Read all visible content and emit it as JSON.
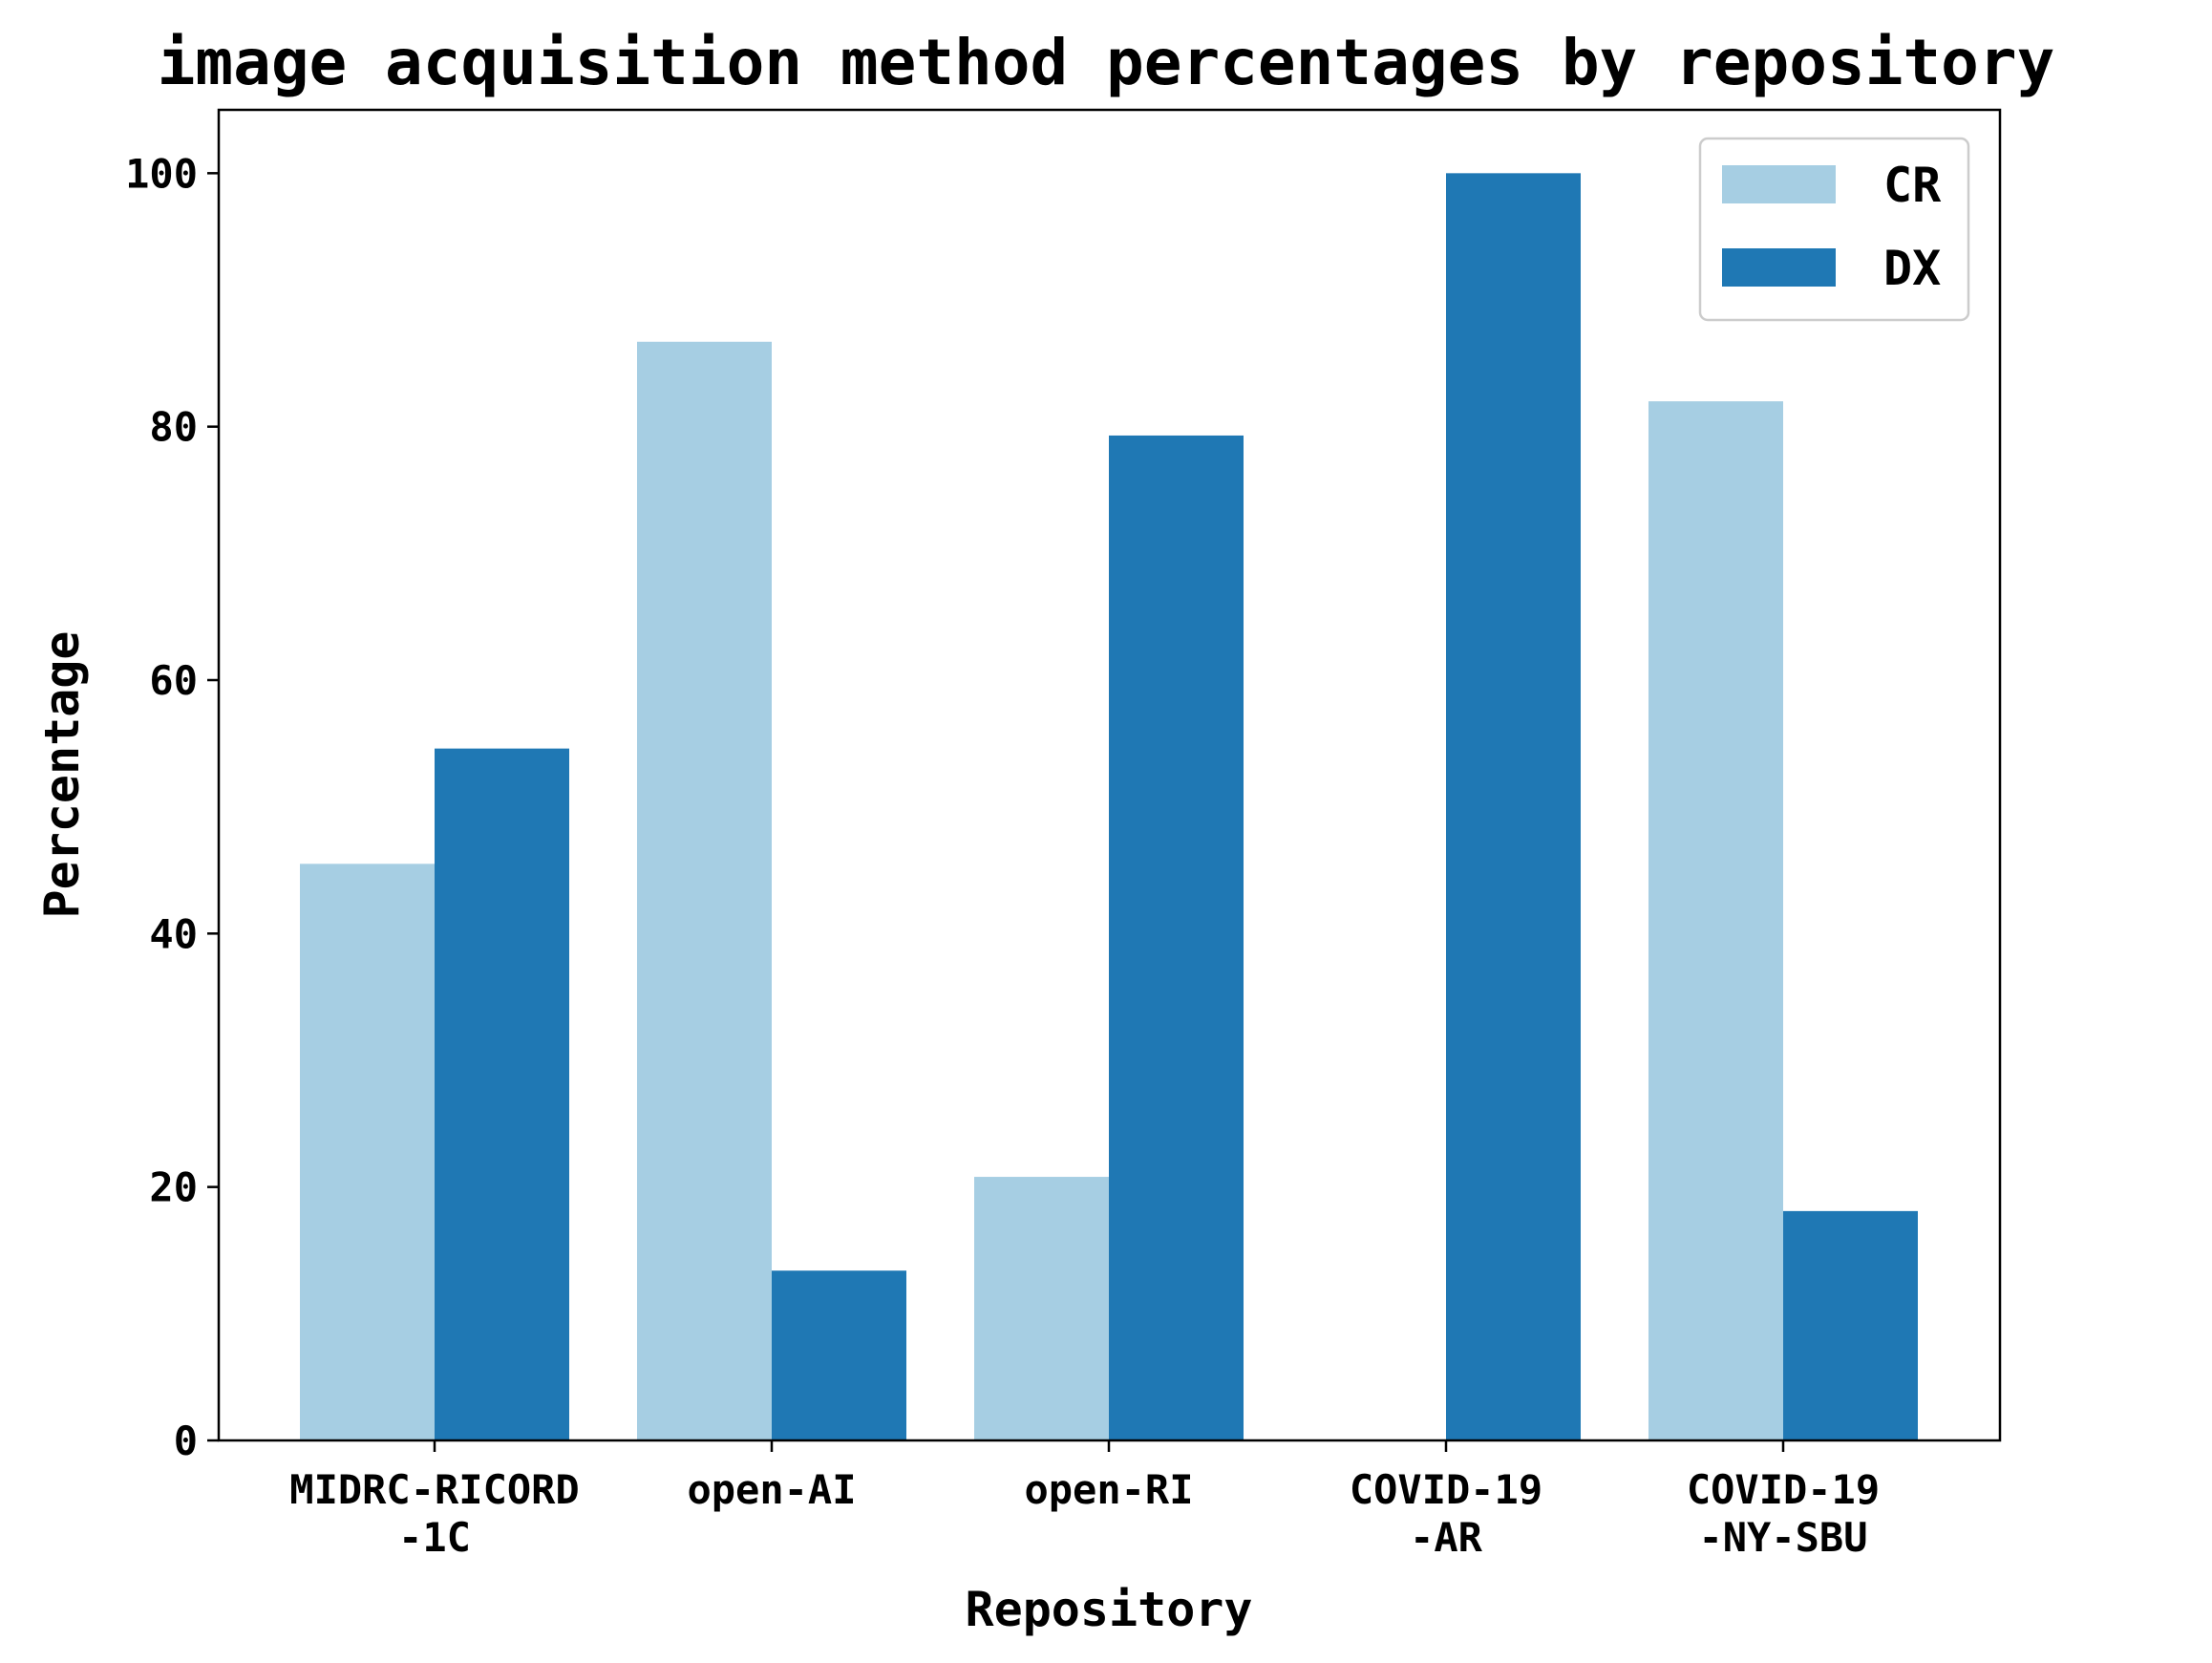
{
  "chart_data": {
    "type": "bar",
    "title": "image acquisition method percentages by repository",
    "xlabel": "Repository",
    "ylabel": "Percentage",
    "categories": [
      [
        "MIDRC-RICORD",
        "-1C"
      ],
      [
        "open-AI"
      ],
      [
        "open-RI"
      ],
      [
        "COVID-19",
        "-AR"
      ],
      [
        "COVID-19",
        "-NY-SBU"
      ]
    ],
    "series": [
      {
        "name": "CR",
        "color": "#a6cee3",
        "values": [
          45.5,
          86.7,
          20.8,
          0,
          82.0
        ]
      },
      {
        "name": "DX",
        "color": "#1f78b4",
        "values": [
          54.6,
          13.4,
          79.3,
          100,
          18.1
        ]
      }
    ],
    "ylim": [
      0,
      105
    ],
    "yticks": [
      0,
      20,
      40,
      60,
      80,
      100
    ],
    "grid": false,
    "legend": {
      "position": "top-right"
    }
  }
}
